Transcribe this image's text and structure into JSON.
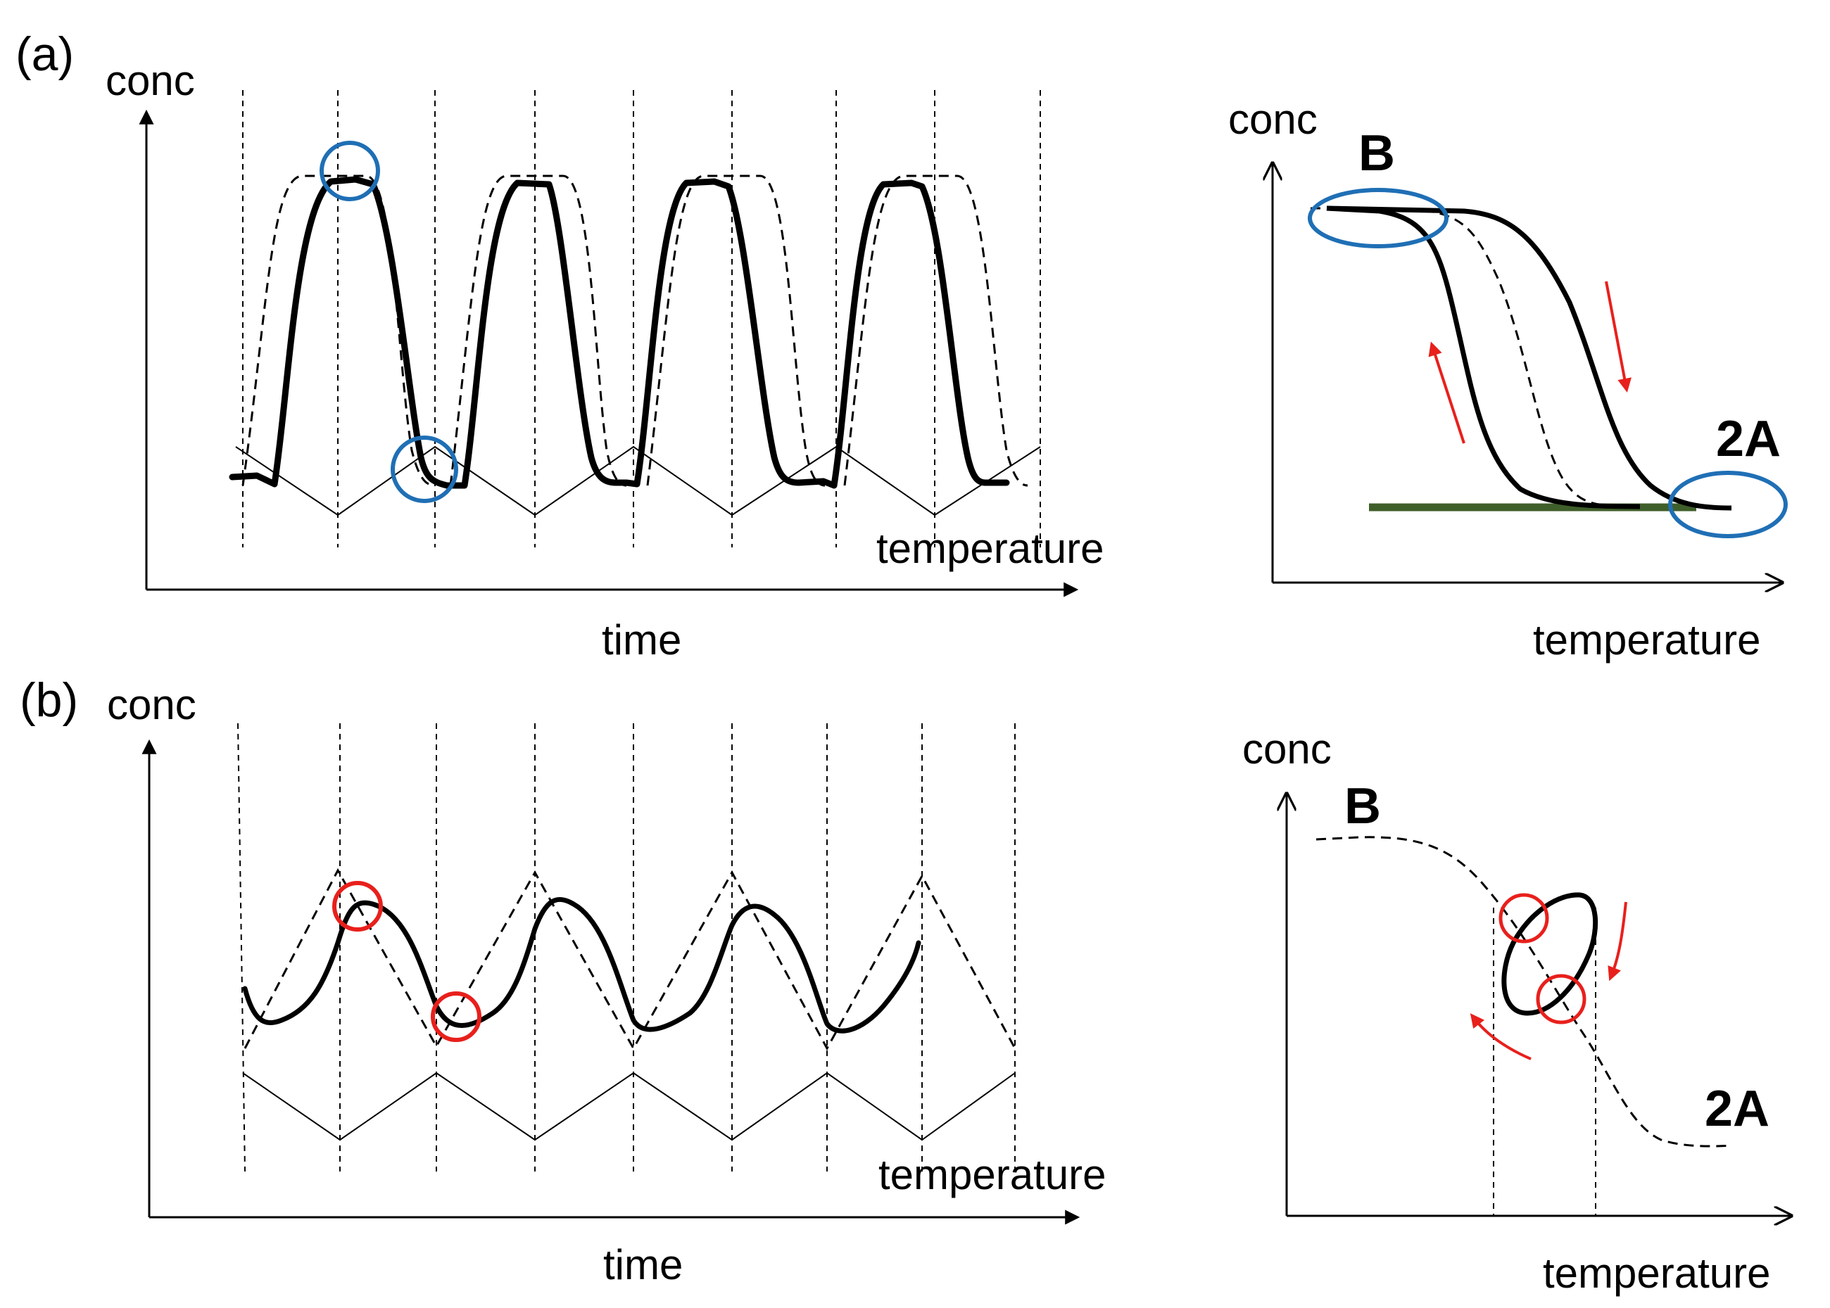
{
  "panel_a": {
    "label": "(a)",
    "time_plot": {
      "y_label": "conc",
      "x_label": "time",
      "trace_label": "temperature"
    },
    "phase_plot": {
      "y_label": "conc",
      "x_label": "temperature",
      "state_high": "B",
      "state_low": "2A"
    }
  },
  "panel_b": {
    "label": "(b)",
    "time_plot": {
      "y_label": "conc",
      "x_label": "time",
      "trace_label": "temperature"
    },
    "phase_plot": {
      "y_label": "conc",
      "x_label": "temperature",
      "state_high": "B",
      "state_low": "2A"
    }
  },
  "colors": {
    "marker_a": "#1f6fb5",
    "marker_b": "#e8201c",
    "arrow": "#e8201c",
    "baseline": "#3f5f2a",
    "ink": "#000000"
  }
}
